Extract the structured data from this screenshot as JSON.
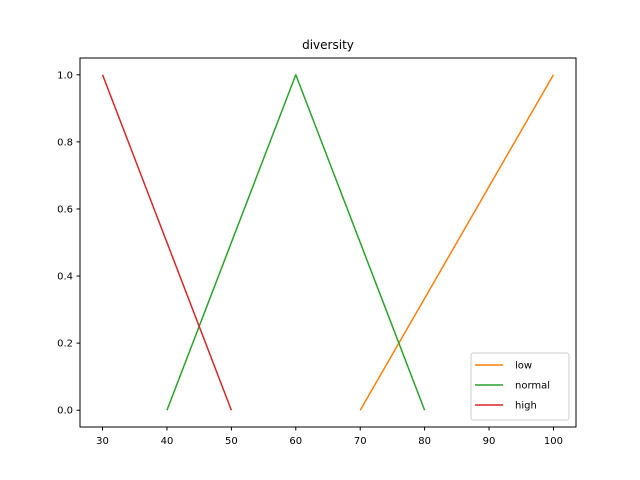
{
  "chart_data": {
    "type": "line",
    "title": "diversity",
    "xlabel": "",
    "ylabel": "",
    "xlim": [
      26.5,
      103.5
    ],
    "ylim": [
      -0.05,
      1.05
    ],
    "xticks": [
      30,
      40,
      50,
      60,
      70,
      80,
      90,
      100
    ],
    "yticks": [
      0.0,
      0.2,
      0.4,
      0.6,
      0.8,
      1.0
    ],
    "xtick_labels": [
      "30",
      "40",
      "50",
      "60",
      "70",
      "80",
      "90",
      "100"
    ],
    "ytick_labels": [
      "0.0",
      "0.2",
      "0.4",
      "0.6",
      "0.8",
      "1.0"
    ],
    "grid": false,
    "legend_position": "lower-right",
    "series": [
      {
        "name": "low",
        "color": "#ff7f0e",
        "x": [
          70,
          100
        ],
        "y": [
          0,
          1
        ]
      },
      {
        "name": "normal",
        "color": "#2ca02c",
        "x": [
          40,
          60,
          80
        ],
        "y": [
          0,
          1,
          0
        ]
      },
      {
        "name": "high",
        "color": "#d62728",
        "x": [
          30,
          50
        ],
        "y": [
          1,
          0
        ]
      }
    ]
  }
}
